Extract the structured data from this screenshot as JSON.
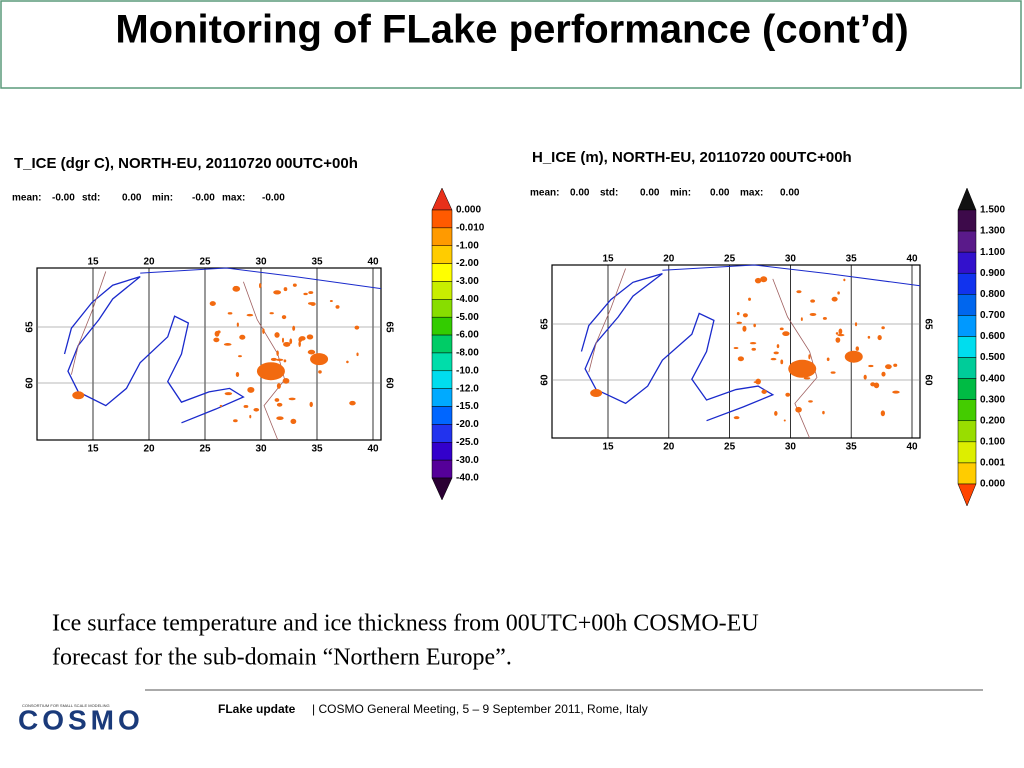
{
  "title": "Monitoring of FLake performance (cont’d)",
  "panels": [
    {
      "title": "T_ICE (dgr C), NORTH-EU, 20110720 00UTC+00h",
      "stats": [
        {
          "label": "mean:",
          "value": "-0.00"
        },
        {
          "label": "std:",
          "value": "0.00"
        },
        {
          "label": "min:",
          "value": "-0.00"
        },
        {
          "label": "max:",
          "value": "-0.00"
        }
      ],
      "lon_labels": [
        "15",
        "20",
        "25",
        "30",
        "35",
        "40"
      ],
      "lat_labels": [
        "65",
        "60"
      ],
      "colorbar": {
        "labels": [
          "0.000",
          "-0.010",
          "-1.00",
          "-2.00",
          "-3.00",
          "-4.00",
          "-5.00",
          "-6.00",
          "-8.00",
          "-10.0",
          "-12.0",
          "-15.0",
          "-20.0",
          "-25.0",
          "-30.0",
          "-40.0"
        ],
        "colors": [
          "#e8301a",
          "#ff5a00",
          "#ff9a00",
          "#ffcc00",
          "#ffff00",
          "#c8ee00",
          "#88dd00",
          "#33cc00",
          "#00cc66",
          "#00ddaa",
          "#00ddee",
          "#00aaff",
          "#0066ff",
          "#2233ee",
          "#3300cc",
          "#550099",
          "#2a0033"
        ]
      }
    },
    {
      "title": "H_ICE (m), NORTH-EU, 20110720 00UTC+00h",
      "stats": [
        {
          "label": "mean:",
          "value": "0.00"
        },
        {
          "label": "std:",
          "value": "0.00"
        },
        {
          "label": "min:",
          "value": "0.00"
        },
        {
          "label": "max:",
          "value": "0.00"
        }
      ],
      "lon_labels": [
        "15",
        "20",
        "25",
        "30",
        "35",
        "40"
      ],
      "lat_labels": [
        "65",
        "60"
      ],
      "colorbar": {
        "labels": [
          "1.500",
          "1.300",
          "1.100",
          "0.900",
          "0.800",
          "0.700",
          "0.600",
          "0.500",
          "0.400",
          "0.300",
          "0.200",
          "0.100",
          "0.001",
          "0.000"
        ],
        "colors": [
          "#111111",
          "#3d0a4a",
          "#5a1a8a",
          "#3311cc",
          "#1133ee",
          "#0066ee",
          "#0099ff",
          "#00ddee",
          "#00cc99",
          "#00bb44",
          "#44cc00",
          "#99dd00",
          "#ddee00",
          "#ffcc00",
          "#ff4400"
        ]
      }
    }
  ],
  "caption": [
    "Ice surface temperature and ice thickness from 00UTC+00h COSMO-EU",
    "forecast for the sub-domain “Northern Europe”."
  ],
  "footer": {
    "bold": "FLake update",
    "text": "| COSMO General Meeting, 5 – 9 September 2011, Rome, Italy"
  },
  "logo": {
    "name": "COSMO",
    "tagline": "CONSORTIUM FOR SMALL SCALE MODELING"
  }
}
